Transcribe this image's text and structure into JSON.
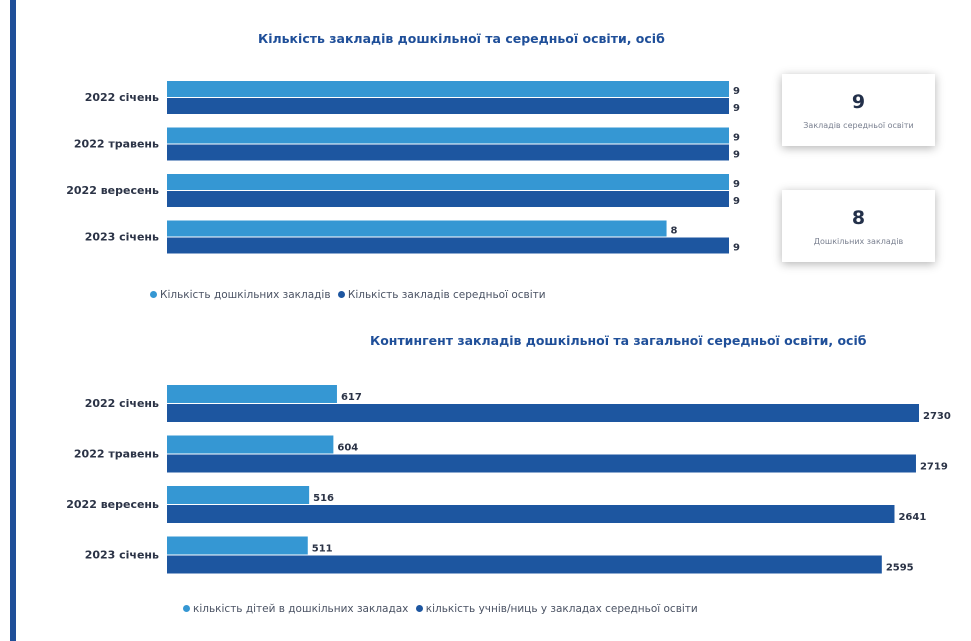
{
  "colors": {
    "light": "#3597d3",
    "dark": "#1d56a0",
    "accent": "#1f4f99"
  },
  "chart_data": [
    {
      "type": "bar",
      "title": "Кількість закладів дошкільної та середньої освіти, осіб",
      "categories": [
        "2022 січень",
        "2022 травень",
        "2022 вересень",
        "2023 січень"
      ],
      "series": [
        {
          "name": "Кількість дошкільних закладів",
          "values": [
            9,
            9,
            9,
            8
          ]
        },
        {
          "name": "Кількість закладів середньої освіти",
          "values": [
            9,
            9,
            9,
            9
          ]
        }
      ],
      "xlim": [
        0,
        9
      ]
    },
    {
      "type": "bar",
      "title": "Контингент закладів дошкільної та загальної середньої освіти, осіб",
      "categories": [
        "2022 січень",
        "2022 травень",
        "2022 вересень",
        "2023 січень"
      ],
      "series": [
        {
          "name": "кількість дітей в дошкільних закладах",
          "values": [
            617,
            604,
            516,
            511
          ]
        },
        {
          "name": "кількість учнів/ниць у закладах середньої освіти",
          "values": [
            2730,
            2719,
            2641,
            2595
          ]
        }
      ],
      "xlim": [
        0,
        2730
      ]
    }
  ],
  "cards": [
    {
      "value": "9",
      "label": "Закладів середньої освіти"
    },
    {
      "value": "8",
      "label": "Дошкільних закладів"
    }
  ]
}
